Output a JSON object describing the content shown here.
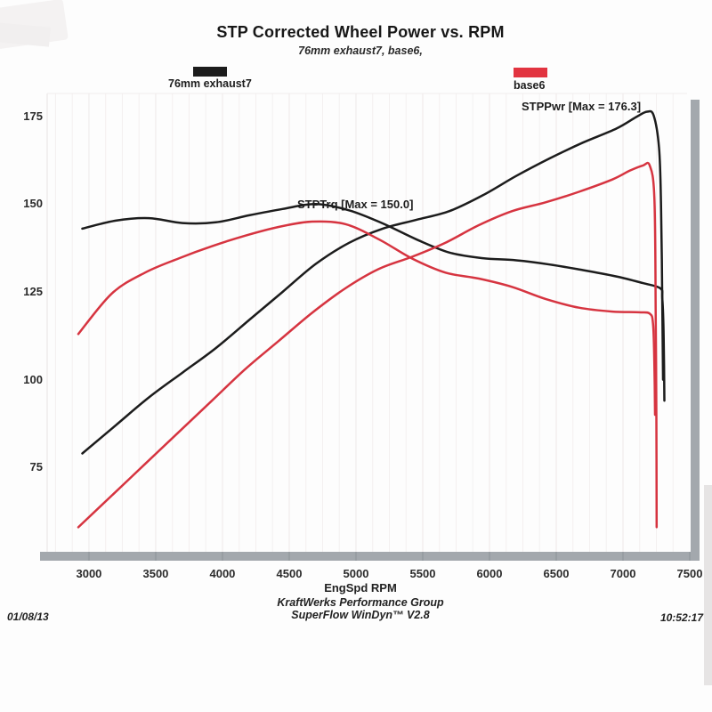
{
  "title": "STP Corrected Wheel Power vs. RPM",
  "subtitle": "76mm exhaust7, base6,",
  "legend": [
    {
      "label": "76mm exhaust7",
      "color": "#1c1c1c"
    },
    {
      "label": "base6",
      "color": "#e23440"
    }
  ],
  "annotations": {
    "power_max": "STPPwr [Max = 176.3]",
    "torque_max": "STPTrq [Max = 150.0]"
  },
  "x_axis_title": "EngSpd  RPM",
  "footer": {
    "org": "KraftWerks Performance Group",
    "software": "SuperFlow WinDyn™ V2.8",
    "date": "01/08/13",
    "time": "10:52:17"
  },
  "chart_data": {
    "type": "line",
    "title": "STP Corrected Wheel Power vs. RPM",
    "xlabel": "EngSpd RPM",
    "ylabel": "",
    "x_ticks": [
      3000,
      3500,
      4000,
      4500,
      5000,
      5500,
      6000,
      6500,
      7000,
      7500
    ],
    "y_ticks": [
      75,
      100,
      125,
      150,
      175
    ],
    "xlim": [
      2687,
      7480
    ],
    "ylim": [
      51,
      181.5
    ],
    "grid": "faint-vertical",
    "legend_position": "top",
    "max_values": {
      "STPPwr": 176.3,
      "STPTrq": 150.0
    },
    "series": [
      {
        "name": "STPPwr (76mm exhaust7)",
        "color": "#1c1c1c",
        "points": [
          [
            2950,
            79
          ],
          [
            3200,
            87
          ],
          [
            3450,
            95
          ],
          [
            3700,
            102
          ],
          [
            3950,
            109
          ],
          [
            4200,
            117
          ],
          [
            4450,
            125
          ],
          [
            4700,
            133
          ],
          [
            4950,
            139
          ],
          [
            5200,
            143
          ],
          [
            5450,
            145.5
          ],
          [
            5700,
            148
          ],
          [
            5950,
            152.5
          ],
          [
            6200,
            158
          ],
          [
            6450,
            163
          ],
          [
            6700,
            167.5
          ],
          [
            6950,
            171.5
          ],
          [
            7100,
            174.8
          ],
          [
            7180,
            176.3
          ],
          [
            7230,
            175.2
          ],
          [
            7270,
            166
          ],
          [
            7285,
            150
          ],
          [
            7295,
            120
          ],
          [
            7300,
            100
          ]
        ]
      },
      {
        "name": "STPTrq (76mm exhaust7)",
        "color": "#1c1c1c",
        "points": [
          [
            2950,
            143
          ],
          [
            3200,
            145.3
          ],
          [
            3450,
            146
          ],
          [
            3700,
            144.6
          ],
          [
            3950,
            144.8
          ],
          [
            4200,
            146.8
          ],
          [
            4450,
            148.6
          ],
          [
            4700,
            150
          ],
          [
            4950,
            148.2
          ],
          [
            5200,
            144.5
          ],
          [
            5450,
            140
          ],
          [
            5700,
            136.2
          ],
          [
            5950,
            134.6
          ],
          [
            6200,
            134
          ],
          [
            6450,
            132.8
          ],
          [
            6700,
            131.2
          ],
          [
            6950,
            129.4
          ],
          [
            7150,
            127.5
          ],
          [
            7280,
            126
          ],
          [
            7295,
            123
          ],
          [
            7305,
            112
          ],
          [
            7310,
            94
          ]
        ]
      },
      {
        "name": "STPPwr (base6)",
        "color": "#d63440",
        "points": [
          [
            2920,
            58
          ],
          [
            3170,
            67
          ],
          [
            3420,
            76
          ],
          [
            3670,
            85
          ],
          [
            3920,
            94
          ],
          [
            4170,
            103
          ],
          [
            4420,
            111
          ],
          [
            4670,
            119
          ],
          [
            4920,
            126
          ],
          [
            5170,
            131.5
          ],
          [
            5420,
            135
          ],
          [
            5670,
            139
          ],
          [
            5920,
            144
          ],
          [
            6170,
            148
          ],
          [
            6420,
            150.5
          ],
          [
            6670,
            153.5
          ],
          [
            6920,
            157
          ],
          [
            7050,
            159.5
          ],
          [
            7150,
            161
          ],
          [
            7200,
            161
          ],
          [
            7235,
            152
          ],
          [
            7245,
            120
          ],
          [
            7250,
            90
          ],
          [
            7252,
            58
          ]
        ]
      },
      {
        "name": "STPTrq (base6)",
        "color": "#d63440",
        "points": [
          [
            2920,
            113
          ],
          [
            3170,
            124.5
          ],
          [
            3420,
            130.5
          ],
          [
            3670,
            134.5
          ],
          [
            3920,
            138
          ],
          [
            4170,
            141
          ],
          [
            4420,
            143.5
          ],
          [
            4670,
            145
          ],
          [
            4920,
            144.3
          ],
          [
            5170,
            140
          ],
          [
            5420,
            134.5
          ],
          [
            5670,
            130.5
          ],
          [
            5920,
            128.8
          ],
          [
            6170,
            126.4
          ],
          [
            6420,
            123
          ],
          [
            6670,
            120.5
          ],
          [
            6920,
            119.4
          ],
          [
            7120,
            119.2
          ],
          [
            7200,
            118.8
          ],
          [
            7225,
            116
          ],
          [
            7235,
            105
          ],
          [
            7240,
            90
          ]
        ]
      }
    ]
  }
}
